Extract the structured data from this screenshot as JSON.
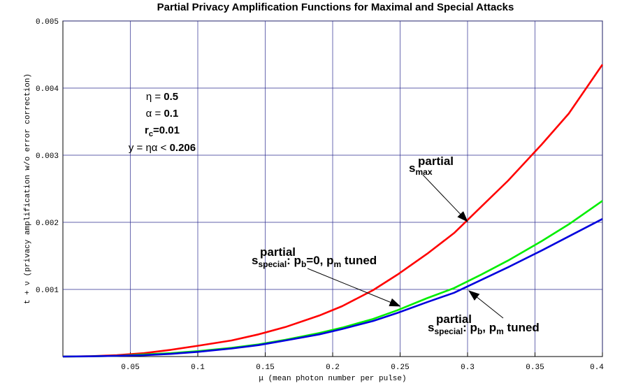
{
  "chart_data": {
    "type": "line",
    "title": "Partial Privacy Amplification Functions  for Maximal and Special Attacks",
    "xlabel": "μ (mean photon number per pulse)",
    "ylabel": "t + ν (privacy amplification w/o error correction)",
    "xlim": [
      0,
      0.4
    ],
    "ylim": [
      0,
      0.005
    ],
    "x_ticks": [
      {
        "v": 0.05,
        "label": "0.05"
      },
      {
        "v": 0.1,
        "label": "0.1"
      },
      {
        "v": 0.15,
        "label": "0.15"
      },
      {
        "v": 0.2,
        "label": "0.2"
      },
      {
        "v": 0.25,
        "label": "0.25"
      },
      {
        "v": 0.3,
        "label": "0.3"
      },
      {
        "v": 0.35,
        "label": "0.35"
      },
      {
        "v": 0.4,
        "label": "0.4"
      }
    ],
    "y_ticks": [
      {
        "v": 0.001,
        "label": "0.001"
      },
      {
        "v": 0.002,
        "label": "0.002"
      },
      {
        "v": 0.003,
        "label": "0.003"
      },
      {
        "v": 0.004,
        "label": "0.004"
      },
      {
        "v": 0.005,
        "label": "0.005"
      }
    ],
    "grid": true,
    "x": [
      0,
      0.02,
      0.04,
      0.06,
      0.08,
      0.1,
      0.125,
      0.145,
      0.165,
      0.19,
      0.207,
      0.23,
      0.248,
      0.27,
      0.29,
      0.31,
      0.33,
      0.355,
      0.375,
      0.4
    ],
    "series": [
      {
        "color": "#ff0000",
        "values": [
          0,
          5e-06,
          2e-05,
          5e-05,
          0.0001,
          0.00016,
          0.00024,
          0.00033,
          0.00044,
          0.00061,
          0.00075,
          0.00099,
          0.00122,
          0.00153,
          0.00184,
          0.00223,
          0.00262,
          0.00316,
          0.00362,
          0.00435
        ]
      },
      {
        "color": "#00ee00",
        "values": [
          0,
          3e-06,
          1e-05,
          3e-05,
          5e-05,
          8e-05,
          0.00013,
          0.00018,
          0.00025,
          0.00035,
          0.00043,
          0.00056,
          0.00069,
          0.00087,
          0.00102,
          0.00122,
          0.00143,
          0.00172,
          0.00197,
          0.00232
        ]
      },
      {
        "color": "#0000dd",
        "values": [
          0,
          3e-06,
          1e-05,
          2e-05,
          4e-05,
          7e-05,
          0.00012,
          0.00017,
          0.00024,
          0.00033,
          0.00041,
          0.00053,
          0.00065,
          0.00081,
          0.00095,
          0.00114,
          0.00133,
          0.00158,
          0.00179,
          0.00205
        ]
      }
    ],
    "parameters": [
      {
        "label": "η = ",
        "value": "0.5"
      },
      {
        "label": "α = ",
        "value": "0.1"
      },
      {
        "label": "r",
        "sub": "c",
        "tail": "=0.01"
      },
      {
        "label": "y = ηα < ",
        "value": "0.206"
      }
    ],
    "annotations": [
      {
        "main": "s",
        "sub": "max",
        "sup": "partial",
        "text": "",
        "arrow_to": {
          "x": 0.3,
          "y": 0.00201
        }
      },
      {
        "main": "s",
        "sub": "special",
        "sup": "partial",
        "text": ": p",
        "text_sub": "b",
        "text_tail": "=0, p",
        "tail_sub": "m",
        "tail_end": " tuned",
        "arrow_to": {
          "x": 0.25,
          "y": 0.00075
        }
      },
      {
        "main": "s",
        "sub": "special",
        "sup": "partial",
        "text": ": p",
        "text_sub": "b",
        "text_tail": ", p",
        "tail_sub": "m",
        "tail_end": " tuned",
        "arrow_to": {
          "x": 0.301,
          "y": 0.00098
        }
      }
    ]
  }
}
